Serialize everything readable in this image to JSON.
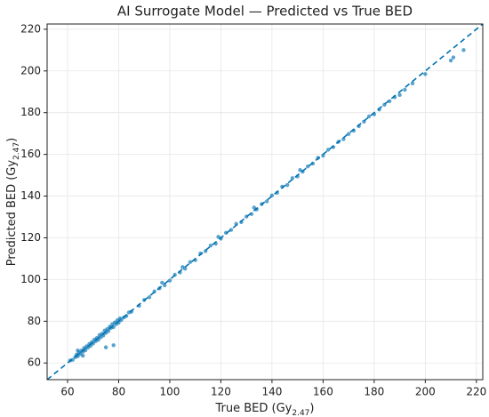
{
  "chart_data": {
    "type": "scatter",
    "title": "AI Surrogate Model — Predicted vs True BED",
    "x_label": [
      "True BED (Gy",
      "2.47",
      ")"
    ],
    "y_label": [
      "Predicted BED (Gy",
      "2.47",
      ")"
    ],
    "color": "#0072B2",
    "identity_line": true,
    "grid": true,
    "xlim": [
      52,
      222.5
    ],
    "ylim": [
      52,
      222.5
    ],
    "xticks": [
      60,
      80,
      100,
      120,
      140,
      160,
      180,
      200,
      220
    ],
    "yticks": [
      60,
      80,
      100,
      120,
      140,
      160,
      180,
      200,
      220
    ],
    "x": [
      61,
      62,
      63,
      63.5,
      64,
      64.5,
      65,
      65.5,
      66,
      66.5,
      67,
      67.5,
      68,
      68.5,
      69,
      69.5,
      70,
      70.5,
      71,
      71.5,
      72,
      72.5,
      73,
      73.5,
      74,
      74.5,
      75,
      75.5,
      76,
      76.5,
      77,
      77.5,
      78,
      78.5,
      79,
      79.5,
      80,
      80.5,
      81,
      82,
      83,
      84,
      85,
      75,
      78,
      64,
      66,
      88,
      90,
      92,
      94,
      96,
      97,
      98,
      100,
      102,
      104,
      105,
      106,
      108,
      110,
      112,
      114,
      116,
      118,
      119,
      120,
      122,
      124,
      126,
      128,
      130,
      132,
      133,
      134,
      136,
      138,
      140,
      142,
      144,
      146,
      148,
      150,
      151,
      152,
      154,
      156,
      158,
      160,
      162,
      164,
      166,
      168,
      170,
      172,
      174,
      176,
      178,
      180,
      182,
      184,
      186,
      188,
      190,
      192,
      195,
      200,
      210,
      211,
      215
    ],
    "values": [
      61.2,
      61.5,
      62.8,
      64,
      63.2,
      65,
      64.3,
      66,
      65.4,
      67.2,
      66.1,
      68,
      67.4,
      69.1,
      68.2,
      70,
      69.3,
      71.2,
      70.4,
      72,
      71.1,
      73.4,
      72.3,
      74,
      73.2,
      75.5,
      74.4,
      76.2,
      75.3,
      77.4,
      76.8,
      78.6,
      77.2,
      79.4,
      78.6,
      80.5,
      79.3,
      81.4,
      80.6,
      81.8,
      82.5,
      84.2,
      84.6,
      67.5,
      68.5,
      66,
      63.5,
      87.4,
      90.2,
      91.5,
      94.3,
      95.8,
      98.5,
      97.2,
      99.5,
      102.3,
      103.4,
      106,
      105.2,
      108.4,
      109.3,
      112.5,
      113.6,
      116.3,
      117.2,
      120.5,
      119.6,
      122.4,
      123.8,
      126.7,
      127.5,
      130.2,
      131.4,
      134.5,
      133.6,
      136.2,
      137.5,
      140.3,
      141.6,
      144.5,
      145.3,
      148.6,
      149.4,
      152.5,
      151.7,
      154.2,
      155.6,
      158.3,
      159.4,
      162.2,
      163.5,
      166,
      167.3,
      169.8,
      171.4,
      173.5,
      175.7,
      178.2,
      179.2,
      181.5,
      183.8,
      185.5,
      187.4,
      188.5,
      191,
      194,
      198.5,
      205,
      206.5,
      210
    ]
  }
}
